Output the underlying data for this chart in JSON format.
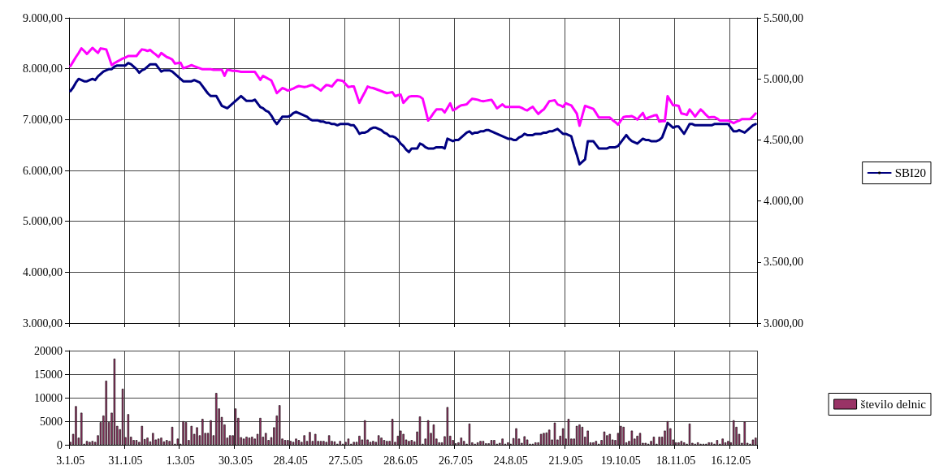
{
  "chart_data": [
    {
      "type": "line",
      "categories": [
        "3.1.05",
        null,
        null,
        null,
        null,
        null,
        null,
        null,
        null,
        null,
        null,
        null,
        null,
        null,
        null,
        null,
        null,
        null,
        null,
        null,
        "31.1.05",
        null,
        null,
        null,
        null,
        null,
        null,
        null,
        null,
        null,
        null,
        null,
        null,
        null,
        null,
        null,
        null,
        null,
        null,
        null,
        "1.3.05",
        null,
        null,
        null,
        null,
        null,
        null,
        null,
        null,
        null,
        null,
        null,
        null,
        null,
        null,
        null,
        null,
        null,
        null,
        null,
        "30.3.05",
        null,
        null,
        null,
        null,
        null,
        null,
        null,
        null,
        null,
        null,
        null,
        null,
        null,
        null,
        null,
        null,
        null,
        null,
        null,
        "28.4.05",
        null,
        null,
        null,
        null,
        null,
        null,
        null,
        null,
        null,
        null,
        null,
        null,
        null,
        null,
        null,
        null,
        null,
        null,
        null,
        "27.5.05",
        null,
        null,
        null,
        null,
        null,
        null,
        null,
        null,
        null,
        null,
        null,
        null,
        null,
        null,
        null,
        null,
        null,
        null,
        null,
        "28.6.05",
        null,
        null,
        null,
        null,
        null,
        null,
        null,
        null,
        null,
        null,
        null,
        null,
        null,
        null,
        null,
        null,
        null,
        null,
        null,
        "26.7.05",
        null,
        null,
        null,
        null,
        null,
        null,
        null,
        null,
        null,
        null,
        null,
        null,
        null,
        null,
        null,
        null,
        null,
        null,
        null,
        "24.8.05",
        null,
        null,
        null,
        null,
        null,
        null,
        null,
        null,
        null,
        null,
        null,
        null,
        null,
        null,
        null,
        null,
        null,
        null,
        null,
        "21.9.05",
        null,
        null,
        null,
        null,
        null,
        null,
        null,
        null,
        null,
        null,
        null,
        null,
        null,
        null,
        null,
        null,
        null,
        null,
        null,
        "19.10.05",
        null,
        null,
        null,
        null,
        null,
        null,
        null,
        null,
        null,
        null,
        null,
        null,
        null,
        null,
        null,
        null,
        null,
        null,
        null,
        "18.11.05",
        null,
        null,
        null,
        null,
        null,
        null,
        null,
        null,
        null,
        null,
        null,
        null,
        null,
        null,
        null,
        null,
        null,
        null,
        null,
        "16.12.05",
        null,
        null,
        null,
        null,
        null,
        null,
        null,
        null,
        null
      ],
      "ylim": [
        3000,
        9000
      ],
      "yticks": [
        {
          "value": 3000,
          "label": "3.000,00"
        },
        {
          "value": 4000,
          "label": "4.000,00"
        },
        {
          "value": 5000,
          "label": "5.000,00"
        },
        {
          "value": 6000,
          "label": "6.000,00"
        },
        {
          "value": 7000,
          "label": "7.000,00"
        },
        {
          "value": 8000,
          "label": "8.000,00"
        },
        {
          "value": 9000,
          "label": "9.000,00"
        }
      ],
      "y2lim": [
        3000,
        5500
      ],
      "y2ticks": [
        {
          "value": 3000,
          "label": "3.000,00"
        },
        {
          "value": 3500,
          "label": "3.500,00"
        },
        {
          "value": 4000,
          "label": "4.000,00"
        },
        {
          "value": 4500,
          "label": "4.500,00"
        },
        {
          "value": 5000,
          "label": "5.000,00"
        },
        {
          "value": 5500,
          "label": "5.500,00"
        }
      ],
      "tick_labels": "y",
      "grid": true,
      "legend": "right",
      "series": [
        {
          "color": "#ff00ff",
          "values": [
            8050,
            8140,
            8230,
            8310,
            8400,
            8350,
            8290,
            8350,
            8410,
            8360,
            8310,
            8400,
            8390,
            8380,
            8230,
            8070,
            8110,
            8140,
            8170,
            8200,
            8220,
            8250,
            8250,
            8250,
            8250,
            8320,
            8380,
            8370,
            8350,
            8370,
            8320,
            8280,
            8230,
            8310,
            8270,
            8230,
            8210,
            8180,
            8100,
            8110,
            8120,
            8010,
            8030,
            8050,
            8070,
            8050,
            8030,
            8010,
            7990,
            7990,
            7990,
            7990,
            7980,
            7980,
            7980,
            7980,
            7860,
            7980,
            7970,
            7960,
            7960,
            7950,
            7940,
            7940,
            7940,
            7940,
            7940,
            7940,
            7860,
            7780,
            7860,
            7830,
            7800,
            7770,
            7650,
            7520,
            7570,
            7620,
            7600,
            7570,
            7590,
            7610,
            7640,
            7660,
            7650,
            7640,
            7650,
            7670,
            7680,
            7640,
            7610,
            7570,
            7630,
            7680,
            7670,
            7650,
            7720,
            7780,
            7770,
            7760,
            7700,
            7640,
            7650,
            7650,
            7490,
            7330,
            7440,
            7540,
            7650,
            7630,
            7620,
            7600,
            7580,
            7560,
            7540,
            7520,
            7530,
            7540,
            7460,
            7480,
            7490,
            7330,
            7390,
            7450,
            7460,
            7460,
            7460,
            7450,
            7410,
            7200,
            6980,
            7050,
            7130,
            7200,
            7200,
            7200,
            7140,
            7230,
            7320,
            7180,
            7210,
            7250,
            7280,
            7290,
            7300,
            7360,
            7410,
            7400,
            7390,
            7370,
            7360,
            7370,
            7380,
            7390,
            7310,
            7220,
            7260,
            7300,
            7250,
            7250,
            7250,
            7250,
            7250,
            7250,
            7230,
            7200,
            7180,
            7220,
            7250,
            7180,
            7110,
            7160,
            7200,
            7280,
            7360,
            7370,
            7380,
            7300,
            7280,
            7250,
            7320,
            7300,
            7280,
            7200,
            7120,
            6880,
            7080,
            7270,
            7250,
            7230,
            7210,
            7130,
            7040,
            7040,
            7040,
            7040,
            7040,
            6990,
            6950,
            6900,
            6980,
            7050,
            7060,
            7060,
            7070,
            7040,
            7000,
            7070,
            7130,
            7010,
            7040,
            7060,
            7080,
            7090,
            6960,
            6970,
            6970,
            7460,
            7370,
            7280,
            7280,
            7270,
            7120,
            7110,
            7090,
            7200,
            7130,
            7060,
            7130,
            7200,
            7150,
            7090,
            7040,
            7050,
            7050,
            7020,
            6980,
            6980,
            6980,
            6980,
            6960,
            6930,
            6960,
            6980,
            7010,
            7010,
            7010,
            7010,
            7060,
            7120
          ]
        },
        {
          "name": "SBI20",
          "color": "#000080",
          "axis": "y2",
          "values": [
            4900,
            4930,
            4970,
            5000,
            4990,
            4980,
            4980,
            4990,
            5000,
            4990,
            5020,
            5040,
            5060,
            5070,
            5080,
            5080,
            5100,
            5110,
            5110,
            5110,
            5110,
            5130,
            5120,
            5100,
            5080,
            5050,
            5070,
            5080,
            5100,
            5120,
            5120,
            5120,
            5090,
            5060,
            5070,
            5070,
            5070,
            5060,
            5040,
            5020,
            5000,
            4980,
            4980,
            4980,
            4980,
            4990,
            4980,
            4970,
            4940,
            4910,
            4880,
            4860,
            4860,
            4860,
            4820,
            4780,
            4770,
            4760,
            4780,
            4800,
            4820,
            4840,
            4860,
            4840,
            4820,
            4820,
            4820,
            4830,
            4800,
            4770,
            4760,
            4740,
            4730,
            4700,
            4660,
            4630,
            4660,
            4690,
            4690,
            4690,
            4700,
            4720,
            4730,
            4720,
            4710,
            4700,
            4690,
            4670,
            4660,
            4660,
            4660,
            4650,
            4650,
            4640,
            4640,
            4630,
            4630,
            4620,
            4630,
            4630,
            4630,
            4630,
            4620,
            4620,
            4590,
            4550,
            4560,
            4560,
            4570,
            4590,
            4600,
            4600,
            4590,
            4580,
            4560,
            4550,
            4530,
            4530,
            4520,
            4500,
            4470,
            4450,
            4420,
            4400,
            4430,
            4430,
            4430,
            4470,
            4460,
            4440,
            4430,
            4430,
            4430,
            4440,
            4440,
            4440,
            4430,
            4510,
            4500,
            4490,
            4500,
            4500,
            4520,
            4540,
            4560,
            4570,
            4550,
            4560,
            4560,
            4570,
            4570,
            4580,
            4580,
            4570,
            4560,
            4550,
            4540,
            4530,
            4520,
            4510,
            4510,
            4500,
            4500,
            4520,
            4530,
            4550,
            4540,
            4540,
            4540,
            4550,
            4550,
            4550,
            4560,
            4560,
            4570,
            4570,
            4580,
            4590,
            4570,
            4550,
            4550,
            4540,
            4530,
            4450,
            4380,
            4300,
            4320,
            4340,
            4490,
            4490,
            4490,
            4460,
            4430,
            4430,
            4430,
            4430,
            4440,
            4440,
            4440,
            4450,
            4480,
            4510,
            4540,
            4510,
            4490,
            4480,
            4470,
            4490,
            4510,
            4500,
            4500,
            4490,
            4490,
            4490,
            4500,
            4520,
            4580,
            4640,
            4620,
            4600,
            4610,
            4610,
            4580,
            4550,
            4590,
            4630,
            4630,
            4620,
            4620,
            4620,
            4620,
            4620,
            4620,
            4620,
            4630,
            4630,
            4630,
            4630,
            4630,
            4630,
            4600,
            4570,
            4570,
            4580,
            4570,
            4560,
            4580,
            4600,
            4620,
            4630
          ]
        }
      ]
    },
    {
      "type": "bar",
      "categories": [
        "3.1.05",
        null,
        null,
        null,
        null,
        null,
        null,
        null,
        null,
        null,
        null,
        null,
        null,
        null,
        null,
        null,
        null,
        null,
        null,
        null,
        "31.1.05",
        null,
        null,
        null,
        null,
        null,
        null,
        null,
        null,
        null,
        null,
        null,
        null,
        null,
        null,
        null,
        null,
        null,
        null,
        null,
        "1.3.05",
        null,
        null,
        null,
        null,
        null,
        null,
        null,
        null,
        null,
        null,
        null,
        null,
        null,
        null,
        null,
        null,
        null,
        null,
        null,
        "30.3.05",
        null,
        null,
        null,
        null,
        null,
        null,
        null,
        null,
        null,
        null,
        null,
        null,
        null,
        null,
        null,
        null,
        null,
        null,
        null,
        "28.4.05",
        null,
        null,
        null,
        null,
        null,
        null,
        null,
        null,
        null,
        null,
        null,
        null,
        null,
        null,
        null,
        null,
        null,
        null,
        null,
        "27.5.05",
        null,
        null,
        null,
        null,
        null,
        null,
        null,
        null,
        null,
        null,
        null,
        null,
        null,
        null,
        null,
        null,
        null,
        null,
        null,
        "28.6.05",
        null,
        null,
        null,
        null,
        null,
        null,
        null,
        null,
        null,
        null,
        null,
        null,
        null,
        null,
        null,
        null,
        null,
        null,
        null,
        "26.7.05",
        null,
        null,
        null,
        null,
        null,
        null,
        null,
        null,
        null,
        null,
        null,
        null,
        null,
        null,
        null,
        null,
        null,
        null,
        null,
        "24.8.05",
        null,
        null,
        null,
        null,
        null,
        null,
        null,
        null,
        null,
        null,
        null,
        null,
        null,
        null,
        null,
        null,
        null,
        null,
        null,
        "21.9.05",
        null,
        null,
        null,
        null,
        null,
        null,
        null,
        null,
        null,
        null,
        null,
        null,
        null,
        null,
        null,
        null,
        null,
        null,
        null,
        "19.10.05",
        null,
        null,
        null,
        null,
        null,
        null,
        null,
        null,
        null,
        null,
        null,
        null,
        null,
        null,
        null,
        null,
        null,
        null,
        null,
        "18.11.05",
        null,
        null,
        null,
        null,
        null,
        null,
        null,
        null,
        null,
        null,
        null,
        null,
        null,
        null,
        null,
        null,
        null,
        null,
        null,
        "16.12.05",
        null,
        null,
        null,
        null,
        null,
        null,
        null,
        null,
        null
      ],
      "ylim": [
        0,
        20000
      ],
      "yticks": [
        0,
        5000,
        10000,
        15000,
        20000
      ],
      "grid": true,
      "legend": "right",
      "series": [
        {
          "name": "število delnic",
          "color": "#993366",
          "values": [
            600,
            2300,
            8200,
            1500,
            6800,
            200,
            800,
            600,
            800,
            600,
            2000,
            4800,
            6200,
            13600,
            4800,
            6800,
            18300,
            4000,
            3300,
            11900,
            1600,
            6500,
            1700,
            1000,
            1000,
            600,
            4000,
            1200,
            1500,
            700,
            2500,
            1100,
            1300,
            1500,
            700,
            1000,
            800,
            3800,
            200,
            1300,
            200,
            5000,
            4800,
            1000,
            4000,
            2300,
            3700,
            2000,
            5500,
            2500,
            2500,
            5200,
            2000,
            11000,
            7700,
            5900,
            4300,
            1500,
            2000,
            2000,
            7700,
            5700,
            1600,
            1300,
            1700,
            1500,
            1700,
            1300,
            2300,
            5700,
            1700,
            2500,
            1000,
            1600,
            3700,
            6200,
            8400,
            1300,
            1000,
            1000,
            800,
            600,
            1300,
            1000,
            600,
            2000,
            800,
            2700,
            800,
            2300,
            800,
            800,
            800,
            600,
            2000,
            800,
            700,
            200,
            800,
            200,
            600,
            1300,
            200,
            600,
            600,
            1900,
            1100,
            5200,
            1100,
            600,
            800,
            600,
            2000,
            1500,
            1000,
            800,
            800,
            5500,
            600,
            1900,
            3000,
            2300,
            1100,
            800,
            1000,
            700,
            2800,
            6000,
            200,
            1300,
            5200,
            2500,
            4300,
            1300,
            500,
            500,
            1800,
            8000,
            1900,
            1000,
            300,
            500,
            1500,
            800,
            200,
            4500,
            500,
            200,
            500,
            800,
            800,
            300,
            300,
            1000,
            1000,
            200,
            400,
            1300,
            200,
            500,
            200,
            1400,
            3500,
            1300,
            400,
            1800,
            1100,
            200,
            200,
            500,
            500,
            2300,
            2500,
            2600,
            3200,
            1100,
            4700,
            1100,
            1900,
            3500,
            1300,
            5500,
            1300,
            1300,
            4000,
            4300,
            3800,
            1700,
            3000,
            500,
            500,
            800,
            200,
            1000,
            2800,
            2000,
            2300,
            1100,
            1000,
            2500,
            4000,
            3800,
            500,
            800,
            3000,
            1300,
            1900,
            2500,
            400,
            400,
            200,
            800,
            1700,
            200,
            1700,
            1700,
            3000,
            5000,
            3500,
            1100,
            500,
            500,
            800,
            500,
            200,
            4500,
            400,
            200,
            500,
            200,
            200,
            200,
            500,
            500,
            200,
            1000,
            200,
            1300,
            500,
            800,
            500,
            5200,
            3800,
            2300,
            400,
            4900,
            400,
            200,
            1100,
            1500
          ]
        }
      ]
    }
  ]
}
